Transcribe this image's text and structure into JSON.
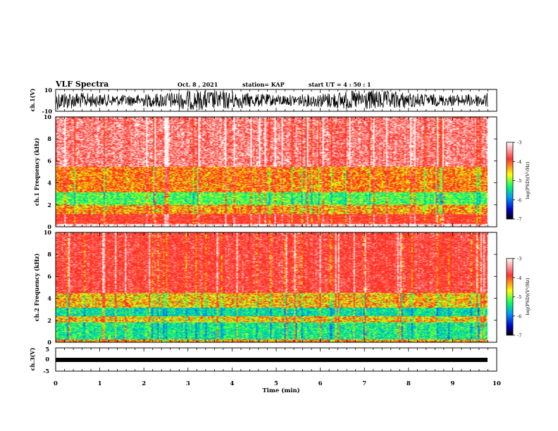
{
  "header": {
    "title": "VLF Spectra",
    "date": "Oct. 8 , 2021",
    "station": "station= KAP",
    "start": "start UT = 4 : 50 : 1"
  },
  "colors": {
    "background": "#ffffff",
    "axis": "#000000",
    "trace": "#000000",
    "colormap": [
      "#ffffff",
      "#ff3333",
      "#ffff00",
      "#00ff66",
      "#0099ff",
      "#0000cc",
      "#000000"
    ]
  },
  "chart_data": [
    {
      "type": "line",
      "panel": "ch.1 waveform",
      "ylabel": "ch.1(V)",
      "ylim": [
        -10,
        10
      ],
      "yticks": [
        "10",
        "-10"
      ],
      "xlim": [
        0,
        10
      ],
      "note_data_extent_min": 9.8
    },
    {
      "type": "heatmap",
      "panel": "ch.1 spectrogram",
      "ylabel": "ch.1 Frequency (kHz)",
      "ylim": [
        0,
        10
      ],
      "yticks": [
        "0",
        "2",
        "4",
        "6",
        "8",
        "10"
      ],
      "xlim": [
        0,
        10
      ],
      "data_extent_min": 9.8,
      "colorbar": {
        "label": "log(PSD)(V²/Hz)",
        "range": [
          -7,
          -3
        ],
        "ticks": [
          "-3",
          "-4",
          "-5",
          "-6",
          "-7"
        ]
      },
      "bands": [
        {
          "f_range": [
            0,
            0.3
          ],
          "value": -3.0
        },
        {
          "f_range": [
            0.3,
            1.2
          ],
          "value": -3.8
        },
        {
          "f_range": [
            1.2,
            2.0
          ],
          "value": -4.3
        },
        {
          "f_range": [
            2.0,
            3.2
          ],
          "value": -4.9
        },
        {
          "f_range": [
            3.2,
            5.5
          ],
          "value": -4.2
        },
        {
          "f_range": [
            5.5,
            10
          ],
          "value": -3.4
        }
      ]
    },
    {
      "type": "heatmap",
      "panel": "ch.2 spectrogram",
      "ylabel": "ch.2 Frequency (kHz)",
      "ylim": [
        0,
        10
      ],
      "yticks": [
        "0",
        "2",
        "4",
        "6",
        "8",
        "10"
      ],
      "xlim": [
        0,
        10
      ],
      "data_extent_min": 9.8,
      "colorbar": {
        "label": "log(PSD)(V²/Hz)",
        "range": [
          -7,
          -3
        ],
        "ticks": [
          "-3",
          "-4",
          "-5",
          "-6",
          "-7"
        ]
      },
      "bands": [
        {
          "f_range": [
            0,
            0.3
          ],
          "value": -4.3
        },
        {
          "f_range": [
            0.3,
            1.8
          ],
          "value": -5.1
        },
        {
          "f_range": [
            1.8,
            2.4
          ],
          "value": -4.4
        },
        {
          "f_range": [
            2.4,
            3.2
          ],
          "value": -5.2
        },
        {
          "f_range": [
            3.2,
            4.5
          ],
          "value": -4.4
        },
        {
          "f_range": [
            4.5,
            10
          ],
          "value": -3.7
        }
      ]
    },
    {
      "type": "line",
      "panel": "ch.3 waveform",
      "ylabel": "ch.3(V)",
      "ylim": [
        -5,
        5
      ],
      "yticks": [
        "5",
        "0",
        "-5"
      ],
      "xlim": [
        0,
        10
      ],
      "level_v": 0,
      "data_extent_min": 9.8
    }
  ],
  "xaxis": {
    "label": "Time (min)",
    "ticks": [
      "0",
      "1",
      "2",
      "3",
      "4",
      "5",
      "6",
      "7",
      "8",
      "9",
      "10"
    ]
  }
}
